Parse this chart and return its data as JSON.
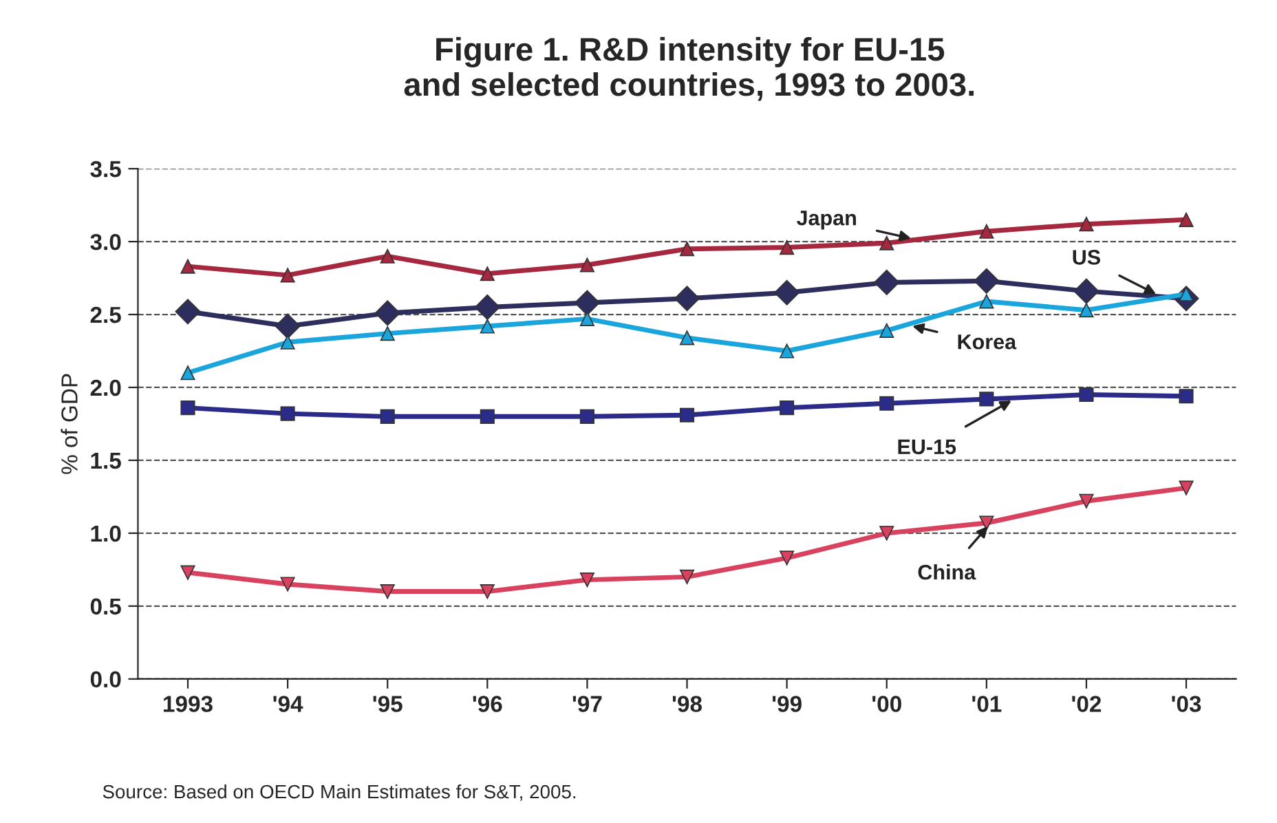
{
  "chart_data": {
    "type": "line",
    "title": "Figure 1. R&D intensity for EU-15\nand selected countries, 1993 to 2003.",
    "ylabel": "% of GDP",
    "categories": [
      "1993",
      "'94",
      "'95",
      "'96",
      "'97",
      "'98",
      "'99",
      "'00",
      "'01",
      "'02",
      "'03"
    ],
    "series": [
      {
        "name": "Japan",
        "color": "#a6283f",
        "marker": "triangle",
        "values": [
          2.83,
          2.77,
          2.9,
          2.78,
          2.84,
          2.95,
          2.96,
          2.99,
          3.07,
          3.12,
          3.15
        ]
      },
      {
        "name": "US",
        "color": "#2e2e5e",
        "marker": "diamond",
        "values": [
          2.52,
          2.42,
          2.51,
          2.55,
          2.58,
          2.61,
          2.65,
          2.72,
          2.73,
          2.66,
          2.61
        ]
      },
      {
        "name": "Korea",
        "color": "#1ba5dd",
        "marker": "triangle",
        "values": [
          2.1,
          2.31,
          2.37,
          2.42,
          2.47,
          2.34,
          2.25,
          2.39,
          2.59,
          2.53,
          2.64
        ]
      },
      {
        "name": "EU-15",
        "color": "#2b2b8a",
        "marker": "square",
        "values": [
          1.86,
          1.82,
          1.8,
          1.8,
          1.8,
          1.81,
          1.86,
          1.89,
          1.92,
          1.95,
          1.94
        ]
      },
      {
        "name": "China",
        "color": "#d9425e",
        "marker": "triangle_down",
        "values": [
          0.73,
          0.65,
          0.6,
          0.6,
          0.68,
          0.7,
          0.83,
          1.0,
          1.07,
          1.22,
          1.31
        ]
      }
    ],
    "ylim": [
      0,
      3.5
    ],
    "yticks": [
      {
        "value": 0,
        "label": "0.0"
      },
      {
        "value": 0.5,
        "label": "0.5"
      },
      {
        "value": 1,
        "label": "1.0"
      },
      {
        "value": 1.5,
        "label": "1.5"
      },
      {
        "value": 2,
        "label": "2.0"
      },
      {
        "value": 2.5,
        "label": "2.5"
      },
      {
        "value": 3,
        "label": "3.0"
      },
      {
        "value": 3.5,
        "label": "3.5"
      }
    ],
    "grid": "y",
    "legend": false,
    "line_style": "solid",
    "annotations": [
      "Source: Based on OECD Main Estimates for S&T, 2005."
    ]
  }
}
